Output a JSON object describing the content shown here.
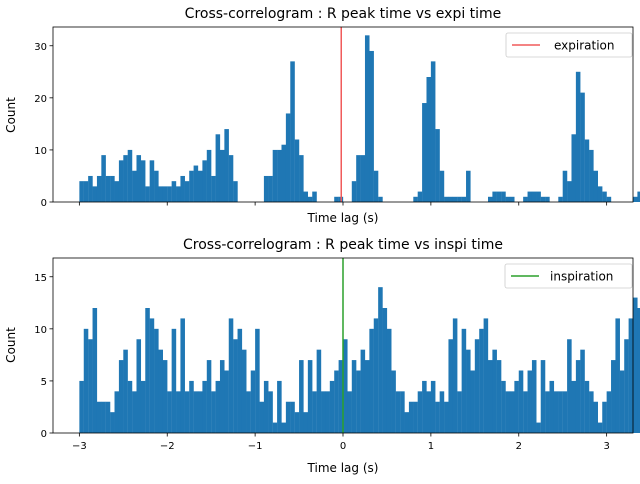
{
  "chart_data": [
    {
      "type": "bar",
      "title": "Cross-correlogram : R peak time vs expi time",
      "xlabel": "Time lag (s)",
      "ylabel": "Count",
      "xlim": [
        -3.3,
        3.3
      ],
      "ylim": [
        0,
        33.6
      ],
      "yticks": [
        0,
        10,
        20,
        30
      ],
      "xticks": [
        -3,
        -2,
        -1,
        0,
        1,
        2,
        3
      ],
      "show_xtick_labels": false,
      "bin_start": -3,
      "bin_width": 0.05,
      "values": [
        4,
        4,
        5,
        3,
        5,
        9,
        5,
        5,
        4,
        8,
        9,
        10,
        6,
        9,
        8,
        3,
        8,
        6,
        3,
        3,
        3,
        4,
        3,
        5,
        4,
        6,
        7,
        6,
        8,
        10,
        5,
        13,
        10,
        14,
        9,
        4,
        0,
        0,
        0,
        0,
        0,
        0,
        5,
        5,
        10,
        10,
        11,
        17,
        27,
        12,
        9,
        2,
        1,
        2,
        0,
        0,
        0,
        0,
        1,
        1,
        0,
        0,
        4,
        9,
        9,
        32,
        29,
        6,
        1,
        0,
        0,
        0,
        0,
        0,
        0,
        0,
        1,
        2,
        19,
        24,
        27,
        14,
        6,
        1,
        1,
        1,
        1,
        1,
        6,
        0,
        0,
        0,
        0,
        1,
        2,
        2,
        2,
        1,
        1,
        0,
        0,
        1,
        2,
        2,
        2,
        1,
        1,
        0,
        0,
        1,
        6,
        4,
        13,
        25,
        21,
        12,
        10,
        6,
        3,
        2,
        1,
        0,
        0,
        0,
        0,
        0,
        1,
        2,
        4,
        6,
        9,
        13,
        20,
        13,
        12,
        1,
        1,
        0,
        1,
        1,
        1,
        1,
        3,
        5,
        9,
        8,
        13,
        17,
        18,
        7,
        14,
        8,
        10,
        10,
        6,
        1,
        1,
        1,
        2,
        2,
        3,
        3,
        5,
        6,
        8,
        8,
        10,
        11,
        13,
        10,
        7,
        6,
        5,
        3,
        3,
        2,
        1,
        1,
        1,
        1,
        1,
        2,
        4,
        2,
        3,
        5,
        6,
        7,
        8,
        8,
        11,
        11,
        9,
        12,
        10,
        8,
        6,
        9,
        10,
        11,
        12,
        13,
        11,
        10,
        8
      ],
      "vline": {
        "x": -0.02,
        "color": "#f05a5a"
      },
      "legend": {
        "label": "expiration",
        "color": "#f05a5a",
        "placement": "top-right"
      }
    },
    {
      "type": "bar",
      "title": "Cross-correlogram : R peak time vs inspi time",
      "xlabel": "Time lag (s)",
      "ylabel": "Count",
      "xlim": [
        -3.3,
        3.3
      ],
      "ylim": [
        0,
        16.8
      ],
      "yticks": [
        0,
        5,
        10,
        15
      ],
      "xticks": [
        -3,
        -2,
        -1,
        0,
        1,
        2,
        3
      ],
      "xtick_labels": [
        "−3",
        "−2",
        "−1",
        "0",
        "1",
        "2",
        "3"
      ],
      "show_xtick_labels": true,
      "bin_start": -3,
      "bin_width": 0.05,
      "values": [
        5,
        10,
        9,
        12,
        3,
        3,
        3,
        2,
        4,
        7,
        8,
        5,
        4,
        9,
        5,
        12,
        11,
        10,
        8,
        7,
        4,
        10,
        4,
        11,
        4,
        5,
        4,
        4,
        5,
        7,
        4,
        5,
        7,
        6,
        11,
        9,
        10,
        8,
        4,
        6,
        10,
        3,
        5,
        4,
        1,
        5,
        1,
        3,
        3,
        2,
        7,
        2,
        7,
        4,
        8,
        4,
        4,
        5,
        6,
        7,
        9,
        4,
        7,
        6,
        8,
        7,
        10,
        11,
        14,
        12,
        10,
        6,
        4,
        4,
        2,
        3,
        3,
        4,
        5,
        4,
        5,
        3,
        4,
        3,
        9,
        11,
        4,
        10,
        8,
        6,
        9,
        10,
        11,
        7,
        8,
        7,
        5,
        4,
        4,
        5,
        6,
        4,
        6,
        7,
        1,
        7,
        4,
        5,
        4,
        4,
        4,
        9,
        5,
        7,
        8,
        5,
        4,
        3,
        1,
        3,
        4,
        7,
        11,
        6,
        9,
        11,
        13,
        12,
        11,
        10,
        6,
        5,
        8,
        12,
        10,
        9,
        7,
        6,
        5,
        3,
        4,
        3,
        4,
        3,
        10,
        10,
        11,
        10,
        12,
        13,
        12,
        11,
        8,
        4,
        4,
        4,
        4,
        6,
        8,
        5,
        6,
        3,
        2,
        4,
        5,
        3,
        4,
        4,
        1,
        6,
        4,
        6,
        8,
        12,
        12,
        14,
        13,
        10,
        8,
        9,
        12,
        10,
        11,
        14,
        14,
        12,
        10,
        9,
        7,
        6,
        5,
        4,
        3,
        4,
        5,
        4,
        5,
        3,
        4,
        5,
        4,
        6,
        5,
        8
      ],
      "vline": {
        "x": 0.0,
        "color": "#2ca02c"
      },
      "legend": {
        "label": "inspiration",
        "color": "#2ca02c",
        "placement": "top-right"
      }
    }
  ]
}
